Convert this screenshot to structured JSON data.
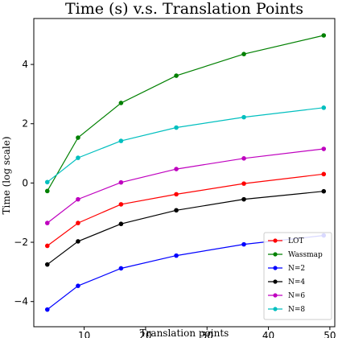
{
  "chart_data": {
    "type": "line",
    "title": "Time (s) v.s. Translation Points",
    "xlabel": "Translation points",
    "ylabel": "Time (log scale)",
    "xlim": [
      1.8,
      50.8
    ],
    "ylim": [
      -4.85,
      5.55
    ],
    "xticks": [
      10,
      20,
      30,
      40,
      50
    ],
    "yticks": [
      -4,
      -2,
      0,
      2,
      4
    ],
    "legend_position": "lower-right",
    "grid": false,
    "x": [
      4,
      9,
      16,
      25,
      36,
      49
    ],
    "series": [
      {
        "name": "LOT",
        "color": "#ff0000",
        "values": [
          -2.12,
          -1.35,
          -0.72,
          -0.38,
          -0.02,
          0.3
        ]
      },
      {
        "name": "Wassmap",
        "color": "#008000",
        "values": [
          -0.27,
          1.53,
          2.7,
          3.62,
          4.35,
          4.98
        ]
      },
      {
        "name": "N=2",
        "color": "#0000ff",
        "values": [
          -4.27,
          -3.47,
          -2.88,
          -2.45,
          -2.07,
          -1.77
        ]
      },
      {
        "name": "N=4",
        "color": "#000000",
        "values": [
          -2.75,
          -1.97,
          -1.38,
          -0.92,
          -0.55,
          -0.28
        ]
      },
      {
        "name": "N=6",
        "color": "#bf00bf",
        "values": [
          -1.35,
          -0.55,
          0.02,
          0.47,
          0.83,
          1.15
        ]
      },
      {
        "name": "N=8",
        "color": "#00bfbf",
        "values": [
          0.03,
          0.85,
          1.42,
          1.87,
          2.22,
          2.54
        ]
      }
    ]
  }
}
